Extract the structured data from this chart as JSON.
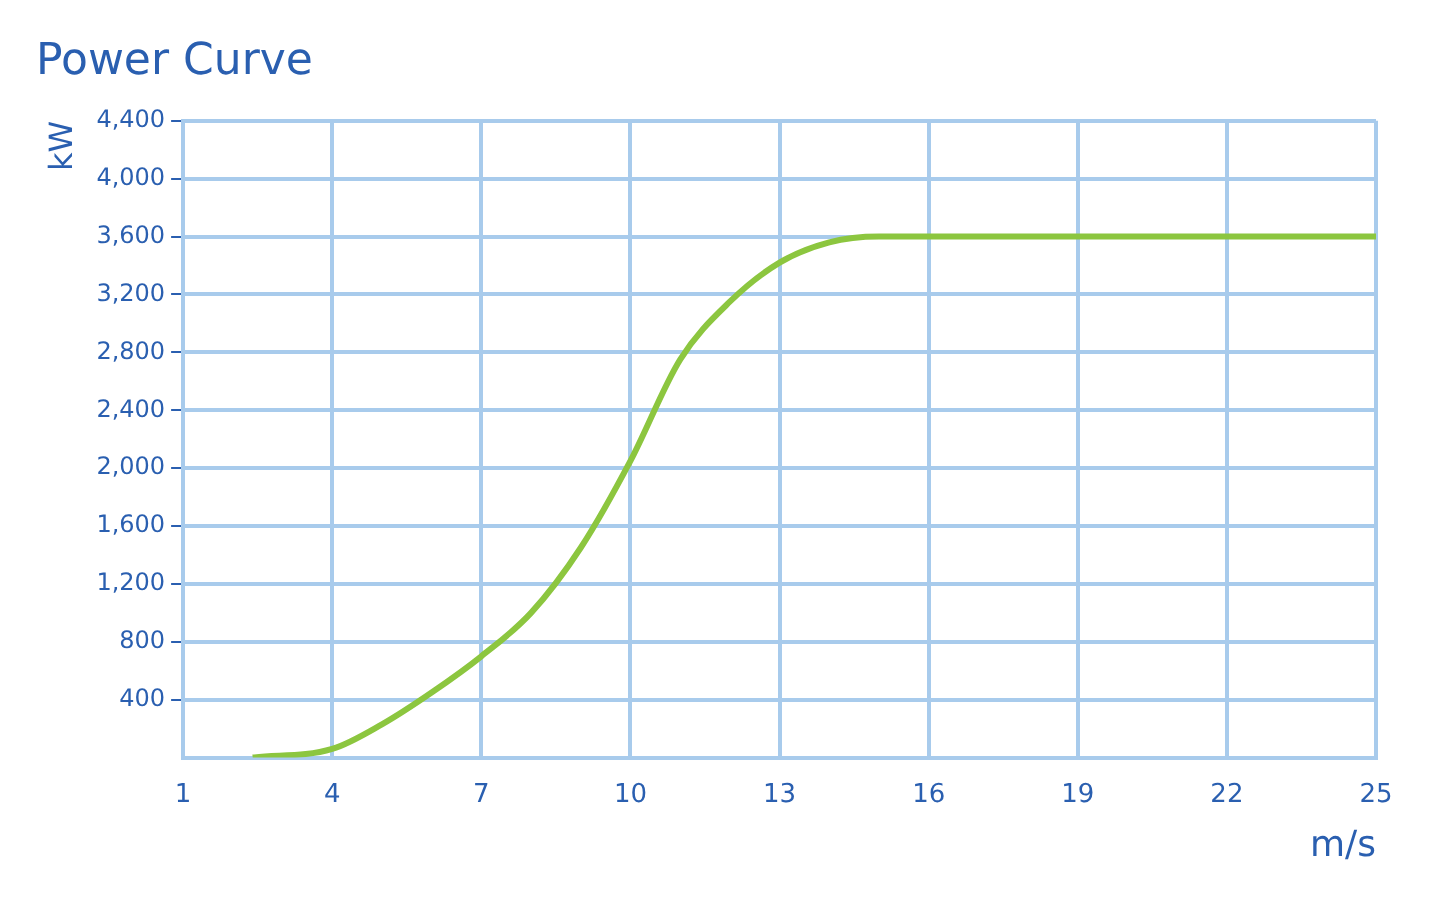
{
  "chart_data": {
    "type": "line",
    "title": "Power Curve",
    "xlabel": "m/s",
    "ylabel": "kW",
    "x": [
      2.4,
      4,
      5,
      6,
      7,
      8,
      9,
      10,
      11,
      12,
      13,
      14,
      15,
      25
    ],
    "series": [
      {
        "color": "#8cc63f",
        "values": [
          0,
          60,
          230,
          450,
          700,
          1000,
          1450,
          2050,
          2750,
          3150,
          3420,
          3560,
          3600,
          3600
        ]
      }
    ],
    "xlim": [
      1,
      25
    ],
    "xticks": [
      1,
      4,
      7,
      10,
      13,
      16,
      19,
      22,
      25
    ],
    "ylim": [
      0,
      4400
    ],
    "yticks": [
      {
        "value": 400,
        "label": "400"
      },
      {
        "value": 800,
        "label": "800"
      },
      {
        "value": 1200,
        "label": "1,200"
      },
      {
        "value": 1600,
        "label": "1,600"
      },
      {
        "value": 2000,
        "label": "2,000"
      },
      {
        "value": 2400,
        "label": "2,400"
      },
      {
        "value": 2800,
        "label": "2,800"
      },
      {
        "value": 3200,
        "label": "3,200"
      },
      {
        "value": 3600,
        "label": "3,600"
      },
      {
        "value": 4000,
        "label": "4,000"
      },
      {
        "value": 4400,
        "label": "4,400"
      }
    ],
    "grid": true,
    "marker": "none",
    "line_style": "solid"
  }
}
